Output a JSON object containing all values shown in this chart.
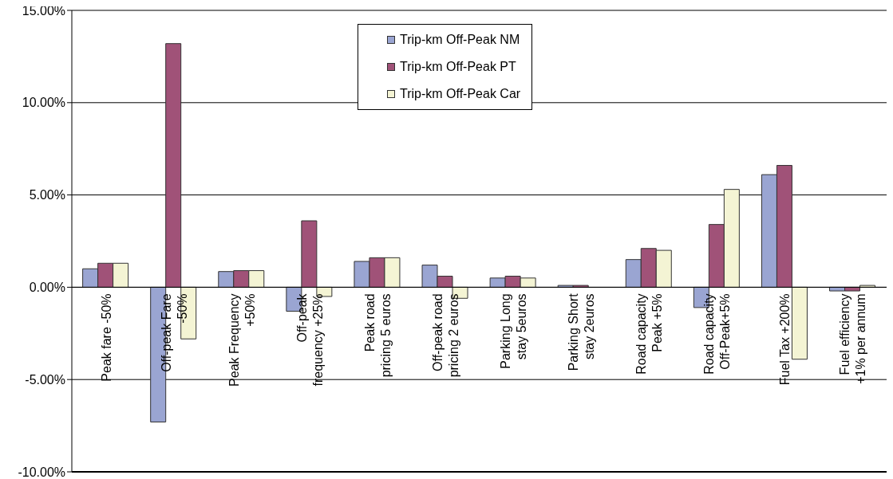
{
  "chart_data": {
    "type": "bar",
    "categories": [
      "Peak fare -50%",
      "Off-peak Fare -50%",
      "Peak Frequency +50%",
      "Off-peak frequency +25%",
      "Peak road pricing 5 euros",
      "Off-peak road pricing 2 euros",
      "Parking Long stay 5euros",
      "Parking Short stay 2euros",
      "Road capacity Peak +5%",
      "Road capacity Off-Peak+5%",
      "Fuel Tax +200%",
      "Fuel efficiency +1% per annum"
    ],
    "series": [
      {
        "name": "Trip-km Off-Peak NM",
        "color": "#9aa5d2",
        "values": [
          1.0,
          -7.3,
          0.85,
          -1.3,
          1.4,
          1.2,
          0.5,
          0.1,
          1.5,
          -1.1,
          6.1,
          -0.2
        ]
      },
      {
        "name": "Trip-km Off-Peak PT",
        "color": "#a05278",
        "values": [
          1.3,
          13.2,
          0.9,
          3.6,
          1.6,
          0.6,
          0.6,
          0.1,
          2.1,
          3.4,
          6.6,
          -0.2
        ]
      },
      {
        "name": "Trip-km Off-Peak Car",
        "color": "#f4f4d4",
        "values": [
          1.3,
          -2.8,
          0.9,
          -0.5,
          1.6,
          -0.6,
          0.5,
          0,
          2.0,
          5.3,
          -3.9,
          0.1
        ]
      }
    ],
    "ylim": [
      -10,
      15
    ],
    "yticks": [
      {
        "value": -10,
        "label": "-10.00%"
      },
      {
        "value": -5,
        "label": "-5.00%"
      },
      {
        "value": 0,
        "label": "0.00%"
      },
      {
        "value": 5,
        "label": "5.00%"
      },
      {
        "value": 10,
        "label": "10.00%"
      },
      {
        "value": 15,
        "label": "15.00%"
      }
    ],
    "grid": "y",
    "legend": "top"
  }
}
